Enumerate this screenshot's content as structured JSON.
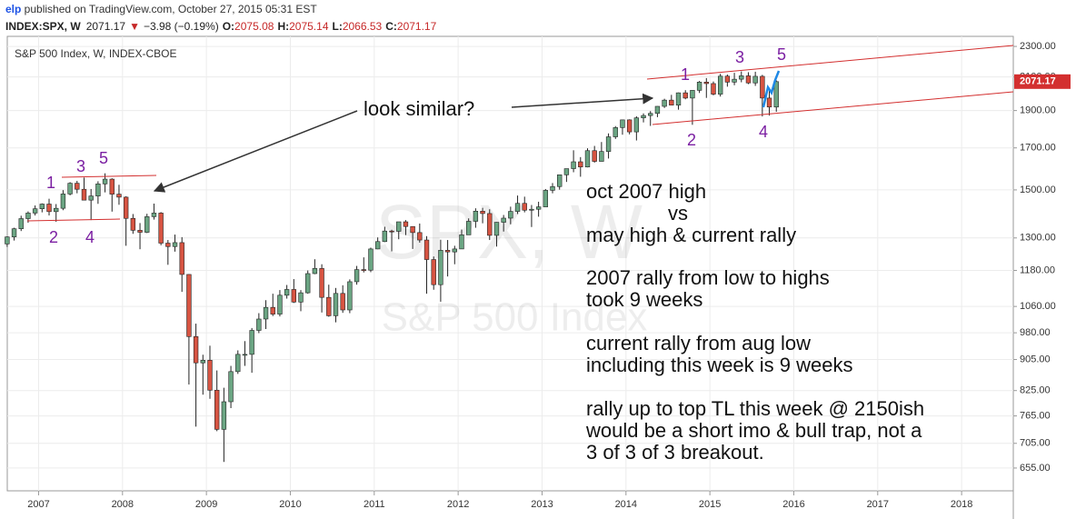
{
  "chart_data": {
    "type": "candlestick",
    "header": {
      "author": "elp",
      "published": " published on TradingView.com, October 27, 2015 05:31 EST",
      "symbol": "INDEX:SPX, W",
      "price": "2071.17",
      "change_arrow": "▼",
      "change": "−3.98 (−0.19%)",
      "o_label": "O:",
      "o": "2075.08",
      "h_label": "H:",
      "h": "2075.14",
      "l_label": "L:",
      "l": "2066.53",
      "c_label": "C:",
      "c": "2071.17"
    },
    "title": "S&P 500 Index, W, INDEX-CBOE",
    "watermark": [
      "SPX, W",
      "S&P 500 Index"
    ],
    "price_label": "2071.17",
    "up_color": "#6ba583",
    "down_color": "#d75442",
    "log_scale": true,
    "grid": true,
    "xlim": [
      "2006-08",
      "2018-08"
    ],
    "xticks": [
      {
        "value": "2007-01",
        "label": "2007"
      },
      {
        "value": "2008-01",
        "label": "2008"
      },
      {
        "value": "2009-01",
        "label": "2009"
      },
      {
        "value": "2010-01",
        "label": "2010"
      },
      {
        "value": "2011-01",
        "label": "2011"
      },
      {
        "value": "2012-01",
        "label": "2012"
      },
      {
        "value": "2013-01",
        "label": "2013"
      },
      {
        "value": "2014-01",
        "label": "2014"
      },
      {
        "value": "2015-01",
        "label": "2015"
      },
      {
        "value": "2016-01",
        "label": "2016"
      },
      {
        "value": "2017-01",
        "label": "2017"
      },
      {
        "value": "2018-01",
        "label": "2018"
      }
    ],
    "ylim": [
      612,
      2370
    ],
    "yticks": [
      {
        "value": 655,
        "label": "655.00"
      },
      {
        "value": 705,
        "label": "705.00"
      },
      {
        "value": 765,
        "label": "765.00"
      },
      {
        "value": 825,
        "label": "825.00"
      },
      {
        "value": 905,
        "label": "905.00"
      },
      {
        "value": 980,
        "label": "980.00"
      },
      {
        "value": 1060,
        "label": "1060.00"
      },
      {
        "value": 1180,
        "label": "1180.00"
      },
      {
        "value": 1300,
        "label": "1300.00"
      },
      {
        "value": 1500,
        "label": "1500.00"
      },
      {
        "value": 1700,
        "label": "1700.00"
      },
      {
        "value": 1900,
        "label": "1900.00"
      },
      {
        "value": 2100,
        "label": "2100.00"
      },
      {
        "value": 2300,
        "label": "2300.00"
      }
    ],
    "x": [
      "2006-08",
      "2006-09",
      "2006-10",
      "2006-11",
      "2006-12",
      "2007-01",
      "2007-02",
      "2007-03",
      "2007-04",
      "2007-05",
      "2007-06",
      "2007-07",
      "2007-08",
      "2007-09",
      "2007-10",
      "2007-11",
      "2007-12",
      "2008-01",
      "2008-02",
      "2008-03",
      "2008-04",
      "2008-05",
      "2008-06",
      "2008-07",
      "2008-08",
      "2008-09",
      "2008-10",
      "2008-11",
      "2008-12",
      "2009-01",
      "2009-02",
      "2009-03",
      "2009-04",
      "2009-05",
      "2009-06",
      "2009-07",
      "2009-08",
      "2009-09",
      "2009-10",
      "2009-11",
      "2009-12",
      "2010-01",
      "2010-02",
      "2010-03",
      "2010-04",
      "2010-05",
      "2010-06",
      "2010-07",
      "2010-08",
      "2010-09",
      "2010-10",
      "2010-11",
      "2010-12",
      "2011-01",
      "2011-02",
      "2011-03",
      "2011-04",
      "2011-05",
      "2011-06",
      "2011-07",
      "2011-08",
      "2011-09",
      "2011-10",
      "2011-11",
      "2011-12",
      "2012-01",
      "2012-02",
      "2012-03",
      "2012-04",
      "2012-05",
      "2012-06",
      "2012-07",
      "2012-08",
      "2012-09",
      "2012-10",
      "2012-11",
      "2012-12",
      "2013-01",
      "2013-02",
      "2013-03",
      "2013-04",
      "2013-05",
      "2013-06",
      "2013-07",
      "2013-08",
      "2013-09",
      "2013-10",
      "2013-11",
      "2013-12",
      "2014-01",
      "2014-02",
      "2014-03",
      "2014-04",
      "2014-05",
      "2014-06",
      "2014-07",
      "2014-08",
      "2014-09",
      "2014-10",
      "2014-11",
      "2014-12",
      "2015-01",
      "2015-02",
      "2015-03",
      "2015-04",
      "2015-05",
      "2015-06",
      "2015-07",
      "2015-08",
      "2015-09",
      "2015-10"
    ],
    "open": [
      1277,
      1304,
      1336,
      1377,
      1400,
      1418,
      1438,
      1406,
      1420,
      1482,
      1530,
      1503,
      1455,
      1473,
      1527,
      1549,
      1481,
      1468,
      1378,
      1330,
      1322,
      1385,
      1400,
      1280,
      1267,
      1282,
      1166,
      969,
      896,
      903,
      826,
      735,
      798,
      873,
      919,
      919,
      987,
      1021,
      1057,
      1036,
      1096,
      1115,
      1074,
      1104,
      1169,
      1187,
      1089,
      1031,
      1102,
      1049,
      1141,
      1183,
      1181,
      1258,
      1286,
      1327,
      1326,
      1364,
      1345,
      1321,
      1292,
      1219,
      1131,
      1253,
      1247,
      1258,
      1312,
      1366,
      1408,
      1398,
      1310,
      1362,
      1379,
      1407,
      1441,
      1412,
      1416,
      1426,
      1498,
      1515,
      1569,
      1598,
      1631,
      1606,
      1686,
      1633,
      1682,
      1757,
      1806,
      1848,
      1783,
      1859,
      1872,
      1884,
      1924,
      1960,
      1931,
      2003,
      1972,
      2018,
      2068,
      2059,
      1995,
      2105,
      2068,
      2086,
      2107,
      2063,
      2104,
      1972,
      1920
    ],
    "high": [
      1306,
      1340,
      1389,
      1407,
      1432,
      1441,
      1461,
      1438,
      1499,
      1535,
      1541,
      1556,
      1504,
      1539,
      1576,
      1553,
      1523,
      1472,
      1396,
      1359,
      1397,
      1440,
      1404,
      1292,
      1313,
      1303,
      1167,
      1007,
      918,
      943,
      876,
      832,
      888,
      930,
      956,
      994,
      1039,
      1080,
      1101,
      1113,
      1130,
      1150,
      1113,
      1180,
      1220,
      1202,
      1131,
      1120,
      1129,
      1149,
      1196,
      1227,
      1263,
      1302,
      1344,
      1332,
      1364,
      1371,
      1346,
      1357,
      1307,
      1230,
      1293,
      1292,
      1270,
      1333,
      1378,
      1420,
      1422,
      1416,
      1363,
      1392,
      1427,
      1475,
      1470,
      1434,
      1448,
      1504,
      1531,
      1570,
      1598,
      1688,
      1654,
      1698,
      1710,
      1730,
      1775,
      1814,
      1849,
      1851,
      1868,
      1884,
      1897,
      1925,
      1968,
      1991,
      2005,
      2019,
      2018,
      2075,
      2093,
      2072,
      2120,
      2115,
      2126,
      2135,
      2130,
      2133,
      2113,
      2021,
      2079
    ],
    "low": [
      1266,
      1290,
      1327,
      1360,
      1390,
      1403,
      1390,
      1364,
      1412,
      1476,
      1485,
      1454,
      1371,
      1439,
      1489,
      1406,
      1435,
      1270,
      1316,
      1257,
      1319,
      1373,
      1272,
      1200,
      1248,
      1107,
      840,
      741,
      815,
      805,
      731,
      667,
      783,
      867,
      888,
      870,
      979,
      991,
      1030,
      1029,
      1085,
      1071,
      1045,
      1101,
      1167,
      1041,
      1028,
      1011,
      1040,
      1039,
      1131,
      1173,
      1174,
      1257,
      1284,
      1249,
      1295,
      1311,
      1258,
      1282,
      1101,
      1114,
      1075,
      1159,
      1202,
      1258,
      1312,
      1340,
      1358,
      1292,
      1267,
      1325,
      1354,
      1396,
      1403,
      1343,
      1385,
      1426,
      1485,
      1501,
      1536,
      1581,
      1560,
      1604,
      1627,
      1633,
      1647,
      1746,
      1768,
      1770,
      1738,
      1834,
      1815,
      1863,
      1915,
      1931,
      1905,
      1965,
      1821,
      2002,
      1973,
      1988,
      1981,
      2040,
      2049,
      2067,
      2056,
      2045,
      1867,
      1872,
      1893
    ],
    "close": [
      1304,
      1336,
      1377,
      1400,
      1418,
      1438,
      1406,
      1420,
      1482,
      1530,
      1503,
      1455,
      1473,
      1527,
      1549,
      1481,
      1468,
      1378,
      1330,
      1322,
      1385,
      1400,
      1280,
      1267,
      1282,
      1166,
      969,
      896,
      903,
      826,
      735,
      798,
      873,
      919,
      919,
      987,
      1021,
      1057,
      1036,
      1096,
      1115,
      1074,
      1104,
      1169,
      1187,
      1089,
      1031,
      1102,
      1049,
      1141,
      1183,
      1181,
      1258,
      1286,
      1327,
      1326,
      1364,
      1345,
      1321,
      1292,
      1219,
      1131,
      1253,
      1247,
      1258,
      1312,
      1366,
      1408,
      1398,
      1310,
      1362,
      1379,
      1407,
      1441,
      1412,
      1416,
      1426,
      1498,
      1515,
      1569,
      1598,
      1631,
      1606,
      1686,
      1633,
      1682,
      1757,
      1806,
      1848,
      1783,
      1859,
      1872,
      1884,
      1924,
      1960,
      1931,
      2003,
      1972,
      2018,
      2068,
      2059,
      1995,
      2105,
      2068,
      2086,
      2107,
      2063,
      2104,
      1972,
      1920,
      2071
    ],
    "annotations": {
      "wave_labels": [
        "1",
        "3",
        "5",
        "2",
        "4",
        "1",
        "3",
        "5",
        "2",
        "4"
      ],
      "callout": "look similar?",
      "notes": [
        "oct 2007 high",
        "vs",
        "may high & current rally",
        "2007 rally from low to highs",
        "took 9 weeks",
        "current rally from aug low",
        "including this week is 9 weeks",
        "rally up to top TL this week @ 2150ish",
        "would be a short imo & bull trap, not a",
        "3 of 3 of 3 breakout."
      ]
    }
  }
}
